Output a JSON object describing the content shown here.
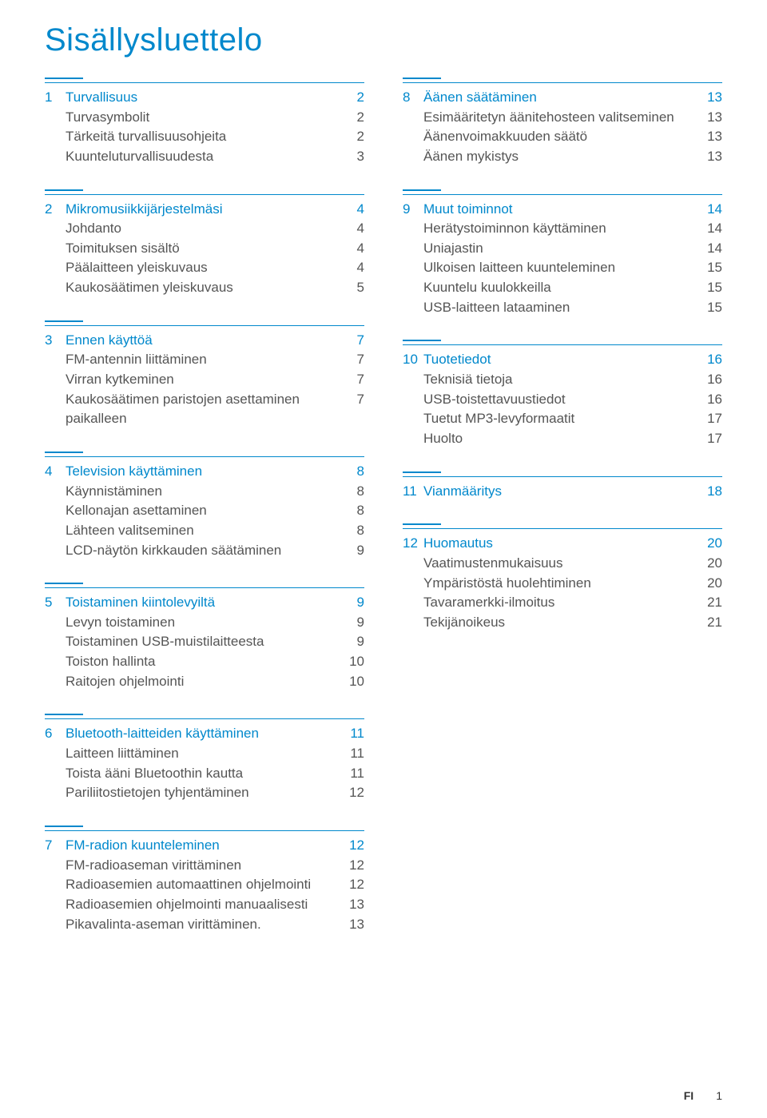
{
  "title": "Sisällysluettelo",
  "colors": {
    "accent": "#0088cc",
    "text": "#555555",
    "background": "#ffffff"
  },
  "footer": {
    "lang": "FI",
    "page": "1"
  },
  "left": [
    {
      "num": "1",
      "title": "Turvallisuus",
      "page": "2",
      "items": [
        {
          "label": "Turvasymbolit",
          "page": "2"
        },
        {
          "label": "Tärkeitä turvallisuusohjeita",
          "page": "2"
        },
        {
          "label": "Kuunteluturvallisuudesta",
          "page": "3"
        }
      ]
    },
    {
      "num": "2",
      "title": "Mikromusiikkijärjestelmäsi",
      "page": "4",
      "items": [
        {
          "label": "Johdanto",
          "page": "4"
        },
        {
          "label": "Toimituksen sisältö",
          "page": "4"
        },
        {
          "label": "Päälaitteen yleiskuvaus",
          "page": "4"
        },
        {
          "label": "Kaukosäätimen yleiskuvaus",
          "page": "5"
        }
      ]
    },
    {
      "num": "3",
      "title": "Ennen käyttöä",
      "page": "7",
      "items": [
        {
          "label": "FM-antennin liittäminen",
          "page": "7"
        },
        {
          "label": "Virran kytkeminen",
          "page": "7"
        },
        {
          "label": "Kaukosäätimen paristojen asettaminen paikalleen",
          "page": "7"
        }
      ]
    },
    {
      "num": "4",
      "title": "Television käyttäminen",
      "page": "8",
      "items": [
        {
          "label": "Käynnistäminen",
          "page": "8"
        },
        {
          "label": "Kellonajan asettaminen",
          "page": "8"
        },
        {
          "label": "Lähteen valitseminen",
          "page": "8"
        },
        {
          "label": "LCD-näytön kirkkauden säätäminen",
          "page": "9"
        }
      ]
    },
    {
      "num": "5",
      "title": "Toistaminen kiintolevyiltä",
      "page": "9",
      "items": [
        {
          "label": "Levyn toistaminen",
          "page": "9"
        },
        {
          "label": "Toistaminen USB-muistilaitteesta",
          "page": "9"
        },
        {
          "label": "Toiston hallinta",
          "page": "10"
        },
        {
          "label": "Raitojen ohjelmointi",
          "page": "10"
        }
      ]
    },
    {
      "num": "6",
      "title": "Bluetooth-laitteiden käyttäminen",
      "page": "11",
      "items": [
        {
          "label": "Laitteen liittäminen",
          "page": "11"
        },
        {
          "label": "Toista ääni Bluetoothin kautta",
          "page": "11"
        },
        {
          "label": "Pariliitostietojen tyhjentäminen",
          "page": "12"
        }
      ]
    },
    {
      "num": "7",
      "title": "FM-radion kuunteleminen",
      "page": "12",
      "items": [
        {
          "label": "FM-radioaseman virittäminen",
          "page": "12"
        },
        {
          "label": "Radioasemien automaattinen ohjelmointi",
          "page": "12"
        },
        {
          "label": "Radioasemien ohjelmointi manuaalisesti",
          "page": "13"
        },
        {
          "label": "Pikavalinta-aseman virittäminen.",
          "page": "13"
        }
      ]
    }
  ],
  "right": [
    {
      "num": "8",
      "title": "Äänen säätäminen",
      "page": "13",
      "items": [
        {
          "label": "Esimääritetyn äänitehosteen valitseminen",
          "page": "13"
        },
        {
          "label": "Äänenvoimakkuuden säätö",
          "page": "13"
        },
        {
          "label": "Äänen mykistys",
          "page": "13"
        }
      ]
    },
    {
      "num": "9",
      "title": "Muut toiminnot",
      "page": "14",
      "items": [
        {
          "label": "Herätystoiminnon käyttäminen",
          "page": "14"
        },
        {
          "label": "Uniajastin",
          "page": "14"
        },
        {
          "label": "Ulkoisen laitteen kuunteleminen",
          "page": "15"
        },
        {
          "label": "Kuuntelu kuulokkeilla",
          "page": "15"
        },
        {
          "label": "USB-laitteen lataaminen",
          "page": "15"
        }
      ]
    },
    {
      "num": "10",
      "title": "Tuotetiedot",
      "page": "16",
      "items": [
        {
          "label": "Teknisiä tietoja",
          "page": "16"
        },
        {
          "label": "USB-toistettavuustiedot",
          "page": "16"
        },
        {
          "label": "Tuetut MP3-levyformaatit",
          "page": "17"
        },
        {
          "label": "Huolto",
          "page": "17"
        }
      ]
    },
    {
      "num": "11",
      "title": "Vianmääritys",
      "page": "18",
      "items": []
    },
    {
      "num": "12",
      "title": "Huomautus",
      "page": "20",
      "items": [
        {
          "label": "Vaatimustenmukaisuus",
          "page": "20"
        },
        {
          "label": "Ympäristöstä huolehtiminen",
          "page": "20"
        },
        {
          "label": "Tavaramerkki-ilmoitus",
          "page": "21"
        },
        {
          "label": "Tekijänoikeus",
          "page": "21"
        }
      ]
    }
  ]
}
